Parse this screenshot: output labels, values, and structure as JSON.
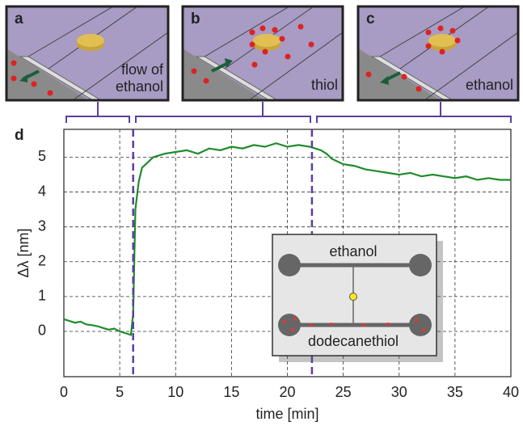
{
  "panels": [
    {
      "label": "a",
      "caption": [
        "flow of",
        "ethanol"
      ]
    },
    {
      "label": "b",
      "caption": [
        "thiol"
      ]
    },
    {
      "label": "c",
      "caption": [
        "ethanol"
      ]
    }
  ],
  "inset": {
    "top_label": "ethanol",
    "bottom_label": "dodecanethiol"
  },
  "chart_data": {
    "type": "line",
    "label": "d",
    "x_label": "time [min]",
    "y_label": "Δλ [nm]",
    "x": [
      0,
      0.5,
      1,
      1.5,
      2,
      2.5,
      3,
      3.5,
      4,
      4.5,
      5,
      5.5,
      6,
      6.2,
      6.4,
      6.7,
      7,
      7.5,
      8,
      9,
      10,
      11,
      12,
      13,
      14,
      15,
      16,
      17,
      18,
      19,
      20,
      21,
      22,
      22.5,
      23,
      23.5,
      24,
      25,
      26,
      27,
      28,
      29,
      30,
      31,
      32,
      33,
      34,
      35,
      36,
      37,
      38,
      39,
      40
    ],
    "series": [
      {
        "color": "#1e8c2a",
        "values": [
          0.35,
          0.3,
          0.25,
          0.28,
          0.2,
          0.18,
          0.15,
          0.1,
          0.05,
          0.08,
          0.0,
          -0.05,
          -0.1,
          0.5,
          3.5,
          4.3,
          4.7,
          4.85,
          5.0,
          5.1,
          5.15,
          5.2,
          5.1,
          5.25,
          5.2,
          5.3,
          5.25,
          5.35,
          5.3,
          5.4,
          5.3,
          5.35,
          5.3,
          5.25,
          5.2,
          5.1,
          4.95,
          4.8,
          4.75,
          4.65,
          4.6,
          4.55,
          4.5,
          4.55,
          4.45,
          4.5,
          4.45,
          4.4,
          4.45,
          4.35,
          4.4,
          4.35,
          4.35
        ]
      }
    ],
    "markers": [
      6.2,
      22.2
    ],
    "marker_color": "#5b3fa0",
    "xlim": [
      0,
      40
    ],
    "xticks": [
      0,
      5,
      10,
      15,
      20,
      25,
      30,
      35,
      40
    ],
    "ylim": [
      -1.3,
      5.8
    ],
    "yticks": [
      0,
      1,
      2,
      3,
      4,
      5
    ],
    "grid": true
  }
}
